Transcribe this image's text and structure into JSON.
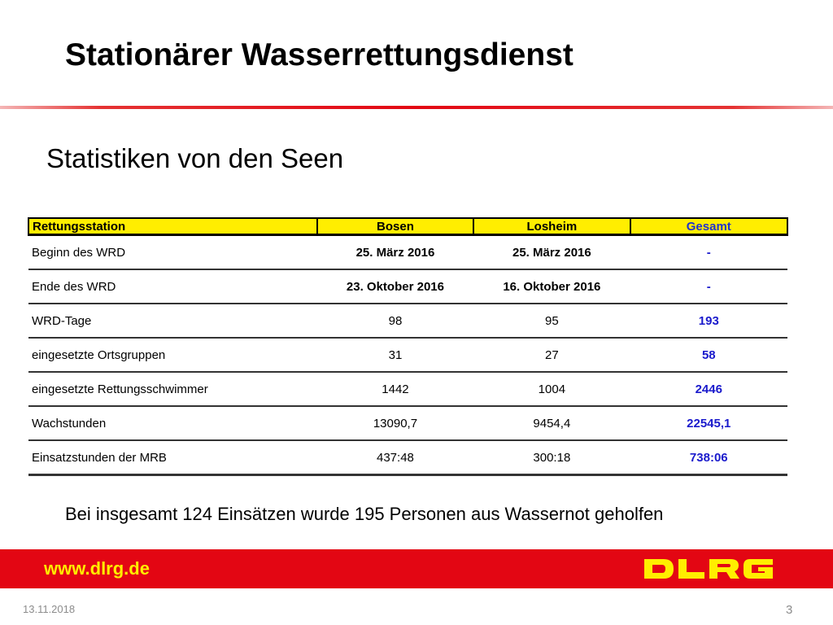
{
  "slide": {
    "title": "Stationärer Wasserrettungsdienst",
    "subtitle": "Statistiken von den Seen",
    "note": "Bei insgesamt 124 Einsätzen wurde 195 Personen aus Wassernot geholfen"
  },
  "table": {
    "headers": [
      "Rettungsstation",
      "Bosen",
      "Losheim",
      "Gesamt"
    ],
    "rows": [
      {
        "label": "Beginn des WRD",
        "bosen": "25. März 2016",
        "losheim": "25. März 2016",
        "gesamt": "-"
      },
      {
        "label": "Ende des WRD",
        "bosen": "23. Oktober 2016",
        "losheim": "16. Oktober 2016",
        "gesamt": "-"
      },
      {
        "label": "WRD-Tage",
        "bosen": "98",
        "losheim": "95",
        "gesamt": "193"
      },
      {
        "label": "eingesetzte Ortsgruppen",
        "bosen": "31",
        "losheim": "27",
        "gesamt": "58"
      },
      {
        "label": "eingesetzte Rettungsschwimmer",
        "bosen": "1442",
        "losheim": "1004",
        "gesamt": "2446"
      },
      {
        "label": "Wachstunden",
        "bosen": "13090,7",
        "losheim": "9454,4",
        "gesamt": "22545,1"
      },
      {
        "label": "Einsatzstunden der MRB",
        "bosen": "437:48",
        "losheim": "300:18",
        "gesamt": "738:06"
      }
    ]
  },
  "footer": {
    "url": "www.dlrg.de",
    "logo_text": "DLRG",
    "date": "13.11.2018",
    "page_number": "3"
  },
  "colors": {
    "brand_red": "#e30613",
    "header_yellow": "#ffee00",
    "total_blue": "#1a1acc",
    "footer_text_yellow": "#ffee00"
  }
}
